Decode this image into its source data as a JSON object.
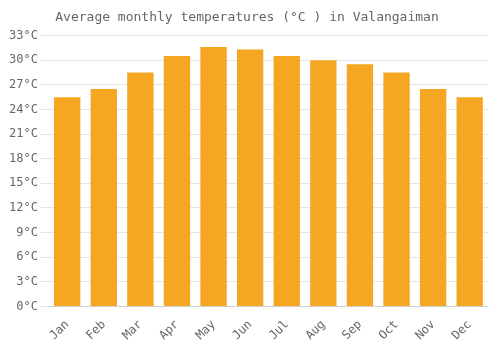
{
  "chart_data": {
    "type": "bar",
    "title": "Average monthly temperatures (°C ) in Valangaiman",
    "categories": [
      "Jan",
      "Feb",
      "Mar",
      "Apr",
      "May",
      "Jun",
      "Jul",
      "Aug",
      "Sep",
      "Oct",
      "Nov",
      "Dec"
    ],
    "values": [
      25.5,
      26.5,
      28.5,
      30.5,
      31.6,
      31.3,
      30.5,
      30.0,
      29.5,
      28.5,
      26.5,
      25.5
    ],
    "color": "#F5A623",
    "ylim": [
      0,
      33
    ],
    "yticks": [
      {
        "value": 0,
        "label": "0°C"
      },
      {
        "value": 3,
        "label": "3°C"
      },
      {
        "value": 6,
        "label": "6°C"
      },
      {
        "value": 9,
        "label": "9°C"
      },
      {
        "value": 12,
        "label": "12°C"
      },
      {
        "value": 15,
        "label": "15°C"
      },
      {
        "value": 18,
        "label": "18°C"
      },
      {
        "value": 21,
        "label": "21°C"
      },
      {
        "value": 24,
        "label": "24°C"
      },
      {
        "value": 27,
        "label": "27°C"
      },
      {
        "value": 30,
        "label": "30°C"
      },
      {
        "value": 33,
        "label": "33°C"
      }
    ],
    "grid": true
  }
}
